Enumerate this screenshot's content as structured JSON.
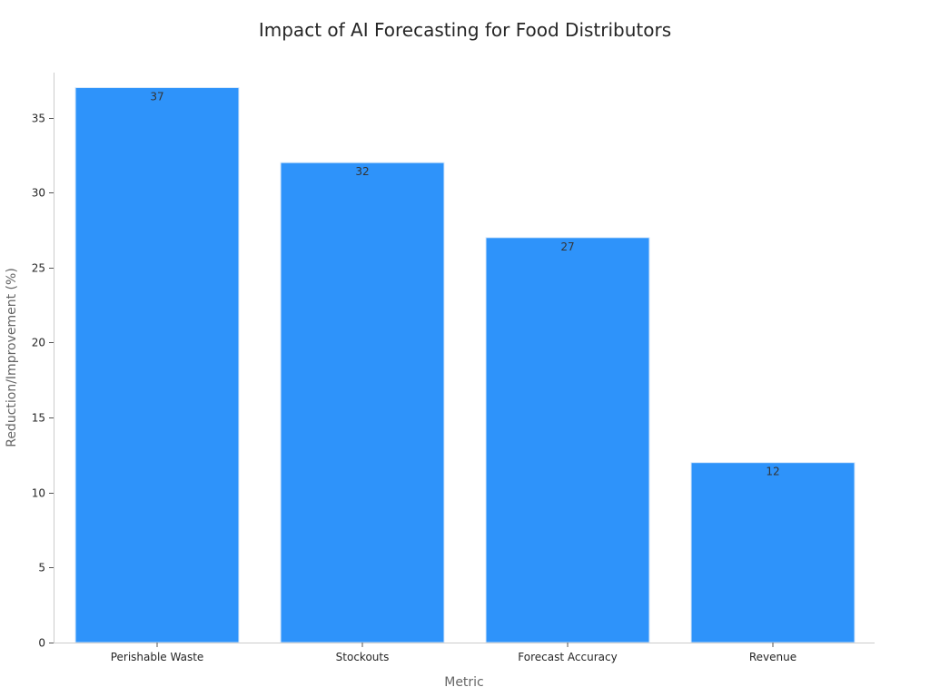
{
  "chart_data": {
    "type": "bar",
    "title": "Impact of AI Forecasting for Food Distributors",
    "xlabel": "Metric",
    "ylabel": "Reduction/Improvement (%)",
    "categories": [
      "Perishable Waste",
      "Stockouts",
      "Forecast Accuracy",
      "Revenue"
    ],
    "values": [
      37,
      32,
      27,
      12
    ],
    "data_labels": [
      "37",
      "32",
      "27",
      "12"
    ],
    "ylim": [
      0,
      38
    ],
    "yticks": [
      0,
      5,
      10,
      15,
      20,
      25,
      30,
      35
    ],
    "bar_color": "#2e93fa",
    "grid": false
  }
}
